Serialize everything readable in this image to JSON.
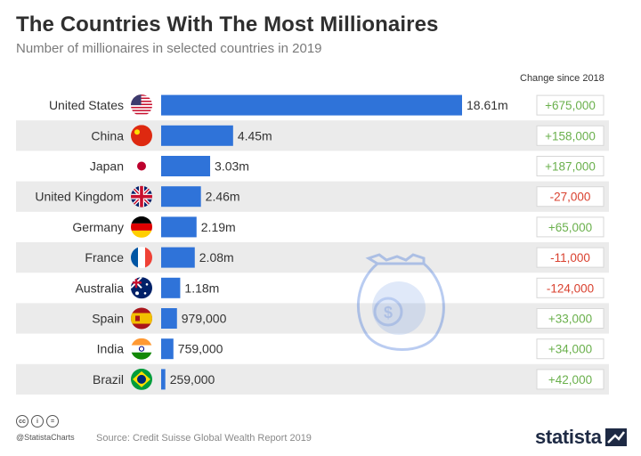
{
  "header": {
    "title": "The Countries With The Most Millionaires",
    "subtitle": "Number of millionaires in selected countries in 2019",
    "change_header": "Change since 2018"
  },
  "colors": {
    "bar": "#2f73d9",
    "row_band": "#ebebeb",
    "positive": "#6ab04c",
    "negative": "#d9412f",
    "badge_border": "#d7d7d7"
  },
  "chart_data": {
    "type": "bar",
    "orientation": "horizontal",
    "categories": [
      "United States",
      "China",
      "Japan",
      "United Kingdom",
      "Germany",
      "France",
      "Australia",
      "Spain",
      "India",
      "Brazil"
    ],
    "values": [
      18610000,
      4450000,
      3030000,
      2460000,
      2190000,
      2080000,
      1180000,
      979000,
      759000,
      259000
    ],
    "value_labels": [
      "18.61m",
      "4.45m",
      "3.03m",
      "2.46m",
      "2.19m",
      "2.08m",
      "1.18m",
      "979,000",
      "759,000",
      "259,000"
    ],
    "change_since_2018": [
      "+675,000",
      "+158,000",
      "+187,000",
      "-27,000",
      "+65,000",
      "-11,000",
      "-124,000",
      "+33,000",
      "+34,000",
      "+42,000"
    ],
    "flag_icons": [
      "us-flag-icon",
      "china-flag-icon",
      "japan-flag-icon",
      "uk-flag-icon",
      "germany-flag-icon",
      "france-flag-icon",
      "australia-flag-icon",
      "spain-flag-icon",
      "india-flag-icon",
      "brazil-flag-icon"
    ],
    "title": "The Countries With The Most Millionaires",
    "subtitle": "Number of millionaires in selected countries in 2019",
    "xlim": [
      0,
      18610000
    ],
    "grid": false,
    "legend": "none"
  },
  "footer": {
    "handle": "@StatistaCharts",
    "source": "Source: Credit Suisse Global Wealth Report 2019",
    "brand": "statista",
    "license_icons": [
      "cc-icon",
      "attribution-icon",
      "no-derivatives-icon"
    ],
    "license_glyphs": [
      "cc",
      "i",
      "="
    ]
  },
  "decoration": {
    "icon": "money-bag-icon",
    "glyph": "$"
  }
}
